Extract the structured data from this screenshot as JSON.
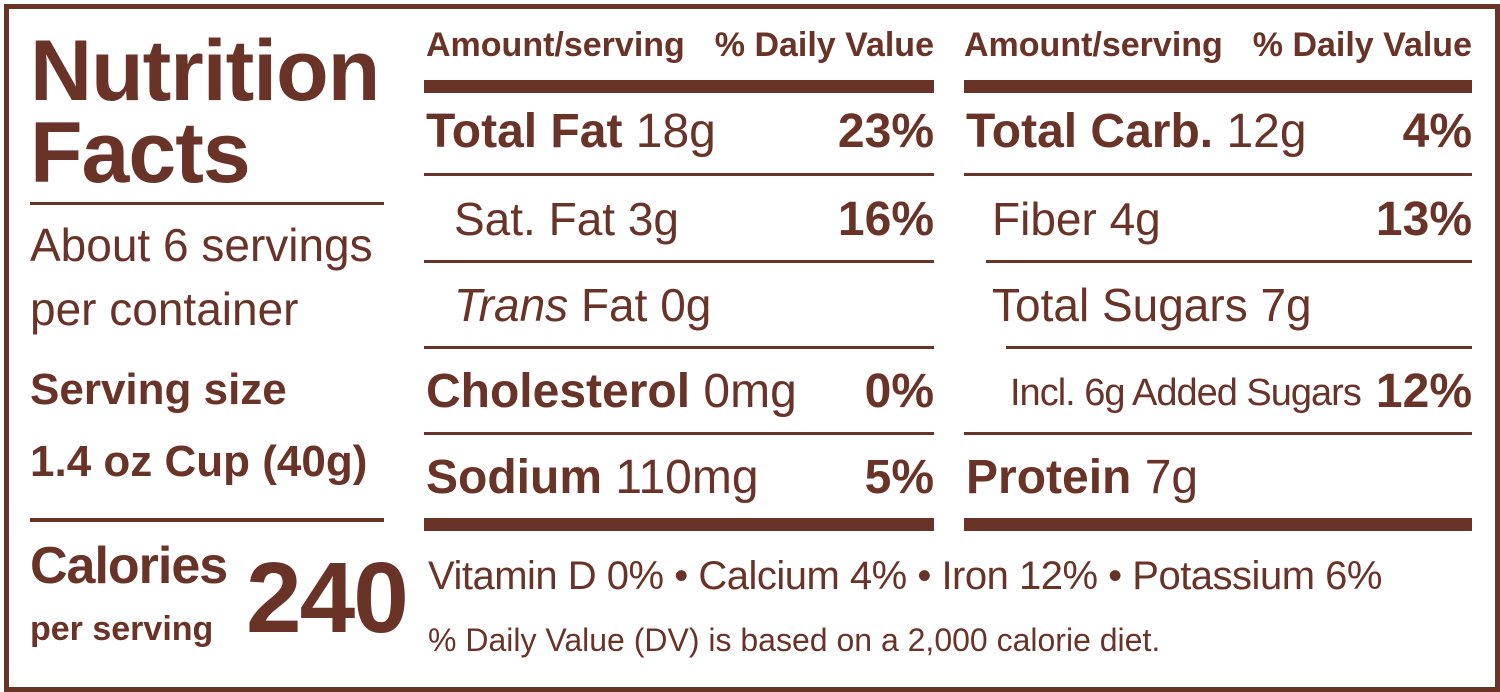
{
  "title": [
    "Nutrition",
    "Facts"
  ],
  "servings_per_container": [
    "About 6 servings",
    "per container"
  ],
  "serving_size": [
    "Serving size",
    "1.4 oz Cup (40g)"
  ],
  "calories": {
    "label": "Calories",
    "sublabel": "per serving",
    "value": "240"
  },
  "colors": {
    "primary": "#6a3328",
    "background": "#ffffff"
  },
  "columns": [
    {
      "header": {
        "amount": "Amount/serving",
        "dv": "% Daily Value"
      },
      "rows": [
        {
          "label": "Total Fat",
          "amount": "18g",
          "dv": "23%"
        },
        {
          "label": "Sat. Fat 3g",
          "amount": "",
          "dv": "16%"
        },
        {
          "label_italic": "Trans",
          "label": " Fat 0g",
          "dv": ""
        },
        {
          "label": "Cholesterol",
          "amount": "0mg",
          "dv": "0%"
        },
        {
          "label": "Sodium",
          "amount": "110mg",
          "dv": "5%"
        }
      ]
    },
    {
      "header": {
        "amount": "Amount/serving",
        "dv": "% Daily Value"
      },
      "rows": [
        {
          "label": "Total Carb.",
          "amount": "12g",
          "dv": "4%"
        },
        {
          "label": "Fiber 4g",
          "amount": "",
          "dv": "13%"
        },
        {
          "label": "Total Sugars 7g",
          "amount": "",
          "dv": ""
        },
        {
          "label": "Incl. 6g Added Sugars",
          "amount": "",
          "dv": "12%"
        },
        {
          "label": "Protein",
          "amount": "7g",
          "dv": ""
        }
      ]
    }
  ],
  "vitamins": "Vitamin D 0% • Calcium 4% • Iron 12% • Potassium 6%",
  "footnote": "% Daily Value (DV) is based on a 2,000 calorie diet."
}
